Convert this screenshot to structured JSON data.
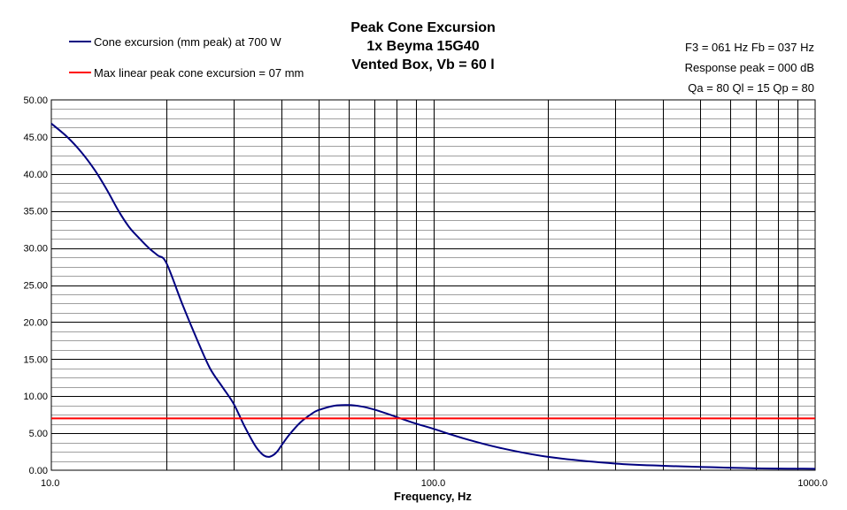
{
  "chart_data": {
    "type": "line",
    "title_lines": [
      "Peak Cone Excursion",
      "1x Beyma 15G40",
      "Vented Box, Vb = 60 l"
    ],
    "params": [
      "F3 = 061 Hz  Fb = 037 Hz",
      "Response peak = 000 dB",
      "Qa = 80  Ql = 15  Qp = 80"
    ],
    "xlabel": "Frequency, Hz",
    "ylabel": "",
    "x_scale": "log",
    "xlim": [
      10,
      1000
    ],
    "ylim": [
      0,
      50
    ],
    "x_tick_labels": [
      "10.0",
      "100.0",
      "1000.0"
    ],
    "y_tick_labels": [
      "50.00",
      "45.00",
      "40.00",
      "35.00",
      "30.00",
      "25.00",
      "20.00",
      "15.00",
      "10.00",
      "5.00",
      "0.00"
    ],
    "grid": true,
    "legend_position": "top-left",
    "series": [
      {
        "name": "Cone excursion (mm peak) at 700 W",
        "color": "#000080",
        "x": [
          10,
          11,
          12,
          13,
          14,
          15,
          16,
          17,
          18,
          19,
          20,
          22,
          24,
          26,
          28,
          30,
          32,
          34,
          35,
          36,
          37,
          38,
          39,
          40,
          42,
          45,
          48,
          50,
          55,
          60,
          65,
          70,
          75,
          80,
          90,
          100,
          120,
          150,
          200,
          300,
          400,
          500,
          700,
          1000
        ],
        "values": [
          46.8,
          45.0,
          42.9,
          40.5,
          37.8,
          35.0,
          32.8,
          31.3,
          30.0,
          29.0,
          28.0,
          22.5,
          17.8,
          13.8,
          11.3,
          9.0,
          6.0,
          3.5,
          2.6,
          2.0,
          1.8,
          2.0,
          2.5,
          3.3,
          4.8,
          6.5,
          7.6,
          8.1,
          8.7,
          8.8,
          8.6,
          8.2,
          7.7,
          7.2,
          6.3,
          5.6,
          4.3,
          3.0,
          1.8,
          0.9,
          0.6,
          0.45,
          0.25,
          0.2
        ]
      },
      {
        "name": "Max linear peak cone excursion = 07 mm",
        "color": "#ff0000",
        "x": [
          10,
          1000
        ],
        "values": [
          7,
          7
        ]
      }
    ]
  }
}
